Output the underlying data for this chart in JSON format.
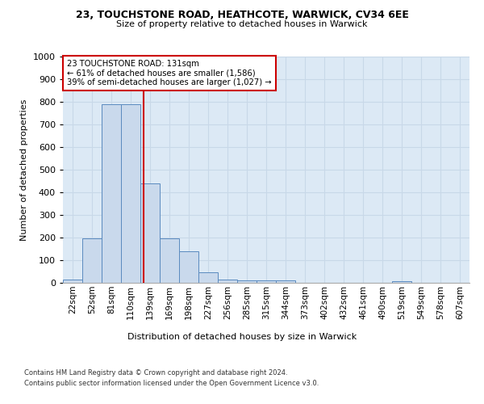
{
  "title1": "23, TOUCHSTONE ROAD, HEATHCOTE, WARWICK, CV34 6EE",
  "title2": "Size of property relative to detached houses in Warwick",
  "xlabel": "Distribution of detached houses by size in Warwick",
  "ylabel": "Number of detached properties",
  "bin_labels": [
    "22sqm",
    "52sqm",
    "81sqm",
    "110sqm",
    "139sqm",
    "169sqm",
    "198sqm",
    "227sqm",
    "256sqm",
    "285sqm",
    "315sqm",
    "344sqm",
    "373sqm",
    "402sqm",
    "432sqm",
    "461sqm",
    "490sqm",
    "519sqm",
    "549sqm",
    "578sqm",
    "607sqm"
  ],
  "bar_heights": [
    15,
    195,
    790,
    790,
    440,
    195,
    140,
    45,
    15,
    10,
    10,
    10,
    0,
    0,
    0,
    0,
    0,
    8,
    0,
    0,
    0
  ],
  "bar_color": "#c9d9ec",
  "bar_edge_color": "#5a8abf",
  "annotation_line1": "23 TOUCHSTONE ROAD: 131sqm",
  "annotation_line2": "← 61% of detached houses are smaller (1,586)",
  "annotation_line3": "39% of semi-detached houses are larger (1,027) →",
  "annotation_box_color": "#ffffff",
  "annotation_box_edge": "#cc0000",
  "vline_color": "#cc0000",
  "grid_color": "#c8d8e8",
  "background_color": "#dce9f5",
  "footer1": "Contains HM Land Registry data © Crown copyright and database right 2024.",
  "footer2": "Contains public sector information licensed under the Open Government Licence v3.0.",
  "ylim": [
    0,
    1000
  ],
  "yticks": [
    0,
    100,
    200,
    300,
    400,
    500,
    600,
    700,
    800,
    900,
    1000
  ],
  "vline_x": 3.67
}
